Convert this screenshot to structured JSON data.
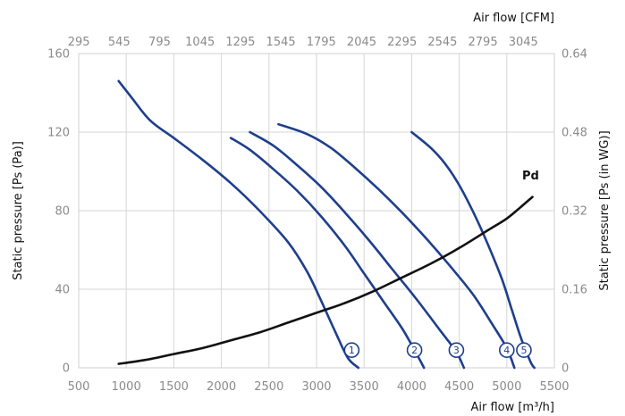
{
  "chart_data": {
    "type": "line",
    "title": "",
    "xlabel": "Air flow [m³/h]",
    "x2label": "Air flow [CFM]",
    "ylabel": "Static pressure [Ps (Pa)]",
    "y2label": "Static pressure [Ps (in WG)]",
    "xlim": [
      500,
      5500
    ],
    "ylim": [
      0,
      160
    ],
    "x_ticks": [
      "500",
      "1000",
      "1500",
      "2000",
      "2500",
      "3000",
      "3500",
      "4000",
      "4500",
      "5000",
      "5500"
    ],
    "y_ticks": [
      "0",
      "40",
      "80",
      "120",
      "160"
    ],
    "x2_ticks": [
      "295",
      "545",
      "795",
      "1045",
      "1295",
      "1545",
      "1795",
      "2045",
      "2295",
      "2545",
      "2795",
      "3045"
    ],
    "y2_ticks": [
      "0",
      "0.16",
      "0.32",
      "0.48",
      "0.64"
    ],
    "grid": true,
    "series": [
      {
        "name": "1",
        "label_at": [
          3370,
          9
        ],
        "points": [
          [
            920,
            146
          ],
          [
            1050,
            138
          ],
          [
            1250,
            126
          ],
          [
            1500,
            117
          ],
          [
            1800,
            106
          ],
          [
            2100,
            94
          ],
          [
            2400,
            80
          ],
          [
            2700,
            64
          ],
          [
            2900,
            49
          ],
          [
            3050,
            34
          ],
          [
            3200,
            18
          ],
          [
            3330,
            5
          ],
          [
            3440,
            0
          ]
        ]
      },
      {
        "name": "2",
        "label_at": [
          4030,
          9
        ],
        "points": [
          [
            2100,
            117
          ],
          [
            2300,
            111
          ],
          [
            2550,
            101
          ],
          [
            2800,
            90
          ],
          [
            3050,
            77
          ],
          [
            3300,
            62
          ],
          [
            3500,
            48
          ],
          [
            3700,
            34
          ],
          [
            3900,
            20
          ],
          [
            4030,
            9
          ],
          [
            4130,
            0
          ]
        ]
      },
      {
        "name": "3",
        "label_at": [
          4470,
          9
        ],
        "points": [
          [
            2300,
            120
          ],
          [
            2550,
            113
          ],
          [
            2800,
            103
          ],
          [
            3050,
            92
          ],
          [
            3300,
            79
          ],
          [
            3550,
            65
          ],
          [
            3800,
            50
          ],
          [
            4050,
            35
          ],
          [
            4300,
            19
          ],
          [
            4470,
            8
          ],
          [
            4550,
            0
          ]
        ]
      },
      {
        "name": "4",
        "label_at": [
          5000,
          9
        ],
        "points": [
          [
            2600,
            124
          ],
          [
            2900,
            119
          ],
          [
            3150,
            112
          ],
          [
            3400,
            102
          ],
          [
            3650,
            91
          ],
          [
            3900,
            79
          ],
          [
            4150,
            66
          ],
          [
            4400,
            52
          ],
          [
            4650,
            37
          ],
          [
            4850,
            22
          ],
          [
            5000,
            10
          ],
          [
            5080,
            0
          ]
        ]
      },
      {
        "name": "5",
        "label_at": [
          5180,
          9
        ],
        "points": [
          [
            4000,
            120
          ],
          [
            4200,
            112
          ],
          [
            4350,
            104
          ],
          [
            4500,
            93
          ],
          [
            4650,
            79
          ],
          [
            4800,
            63
          ],
          [
            4950,
            45
          ],
          [
            5050,
            30
          ],
          [
            5150,
            15
          ],
          [
            5250,
            3
          ],
          [
            5290,
            0
          ]
        ]
      },
      {
        "name": "Pd",
        "label_at": [
          5250,
          96
        ],
        "points": [
          [
            920,
            2
          ],
          [
            1200,
            4
          ],
          [
            1500,
            7
          ],
          [
            1800,
            10
          ],
          [
            2100,
            14
          ],
          [
            2400,
            18
          ],
          [
            2700,
            23
          ],
          [
            3000,
            28
          ],
          [
            3300,
            33
          ],
          [
            3600,
            39
          ],
          [
            3900,
            46
          ],
          [
            4200,
            53
          ],
          [
            4500,
            61
          ],
          [
            4800,
            70
          ],
          [
            5000,
            76
          ],
          [
            5150,
            82
          ],
          [
            5270,
            87
          ]
        ]
      }
    ]
  }
}
